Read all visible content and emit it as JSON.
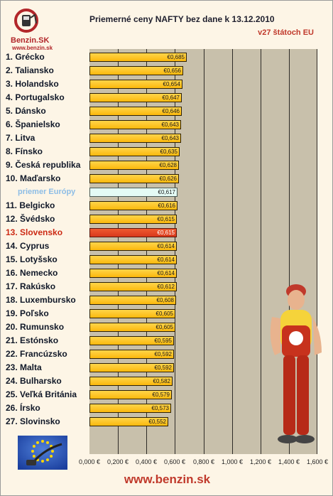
{
  "logo": {
    "name": "Benzin.SK",
    "url": "www.benzin.sk"
  },
  "footer": {
    "url": "www.benzin.sk"
  },
  "colors": {
    "bar": "#fbb80d",
    "average_bar": "#e4fbf5",
    "highlight_bar": "#d8381b",
    "plot_background": "#c8c0ab",
    "page_background": "#fdf5e6"
  },
  "chart_data": {
    "type": "bar",
    "orientation": "horizontal",
    "title": "Priemerné ceny NAFTY bez dane k 13.12.2010",
    "subtitle": "v27 štátoch EU",
    "xlim": [
      0,
      1.6
    ],
    "x_ticks": [
      "0,000 €",
      "0,200 €",
      "0,400 €",
      "0,600 €",
      "0,800 €",
      "1,000 €",
      "1,200 €",
      "1,400 €",
      "1,600 €"
    ],
    "grid": true,
    "categories": [
      "1. Grécko",
      "2. Taliansko",
      "3. Holandsko",
      "4. Portugalsko",
      "5. Dánsko",
      "6. Španielsko",
      "7. Litva",
      "8. Fínsko",
      "9. Česká republika",
      "10. Maďarsko",
      "priemer Európy",
      "11. Belgicko",
      "12. Švédsko",
      "13. Slovensko",
      "14. Cyprus",
      "15. Lotyšsko",
      "16. Nemecko",
      "17. Rakúsko",
      "18. Luxembursko",
      "19. Poľsko",
      "20. Rumunsko",
      "21. Estónsko",
      "22. Francúzsko",
      "23. Malta",
      "24. Bulharsko",
      "25. Veľká Británia",
      "26. Írsko",
      "27. Slovinsko"
    ],
    "values": [
      0.685,
      0.656,
      0.654,
      0.647,
      0.646,
      0.643,
      0.643,
      0.635,
      0.628,
      0.626,
      0.617,
      0.616,
      0.615,
      0.615,
      0.614,
      0.614,
      0.614,
      0.612,
      0.608,
      0.605,
      0.605,
      0.595,
      0.592,
      0.592,
      0.582,
      0.579,
      0.573,
      0.552
    ],
    "value_labels": [
      "€0,685",
      "€0,656",
      "€0,654",
      "€0,647",
      "€0,646",
      "€0,643",
      "€0,643",
      "€0,635",
      "€0,628",
      "€0,626",
      "€0,617",
      "€0,616",
      "€0,615",
      "€0,615",
      "€0,614",
      "€0,614",
      "€0,614",
      "€0,612",
      "€0,608",
      "€0,605",
      "€0,605",
      "€0,595",
      "€0,592",
      "€0,592",
      "€0,582",
      "€0,579",
      "€0,573",
      "€0,552"
    ],
    "average_category": "priemer Európy",
    "highlight_category": "13. Slovensko"
  }
}
